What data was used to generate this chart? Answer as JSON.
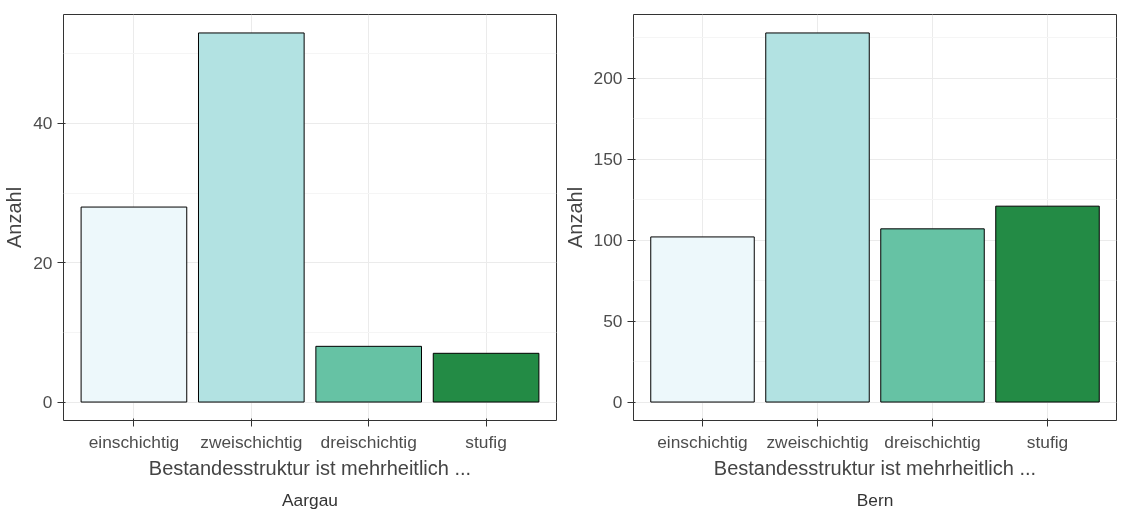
{
  "chart_data": [
    {
      "type": "bar",
      "categories": [
        "einschichtig",
        "zweischichtig",
        "dreischichtig",
        "stufig"
      ],
      "values": [
        28,
        53,
        8,
        7
      ],
      "colors": [
        "#edf8fb",
        "#b2e2e2",
        "#66c2a4",
        "#238b45"
      ],
      "xlabel": "Bestandesstruktur ist mehrheitlich ...",
      "ylabel": "Anzahl",
      "ylim": [
        -2.65,
        55.65
      ],
      "yticks": [
        0,
        20,
        40
      ],
      "grid": true,
      "annotations": [
        "Aargau"
      ]
    },
    {
      "type": "bar",
      "categories": [
        "einschichtig",
        "zweischichtig",
        "dreischichtig",
        "stufig"
      ],
      "values": [
        102,
        228,
        107,
        121
      ],
      "colors": [
        "#edf8fb",
        "#b2e2e2",
        "#66c2a4",
        "#238b45"
      ],
      "xlabel": "Bestandesstruktur ist mehrheitlich ...",
      "ylabel": "Anzahl",
      "ylim": [
        -11.4,
        239.4
      ],
      "yticks": [
        0,
        50,
        100,
        150,
        200
      ],
      "grid": true,
      "annotations": [
        "Bern"
      ]
    }
  ]
}
